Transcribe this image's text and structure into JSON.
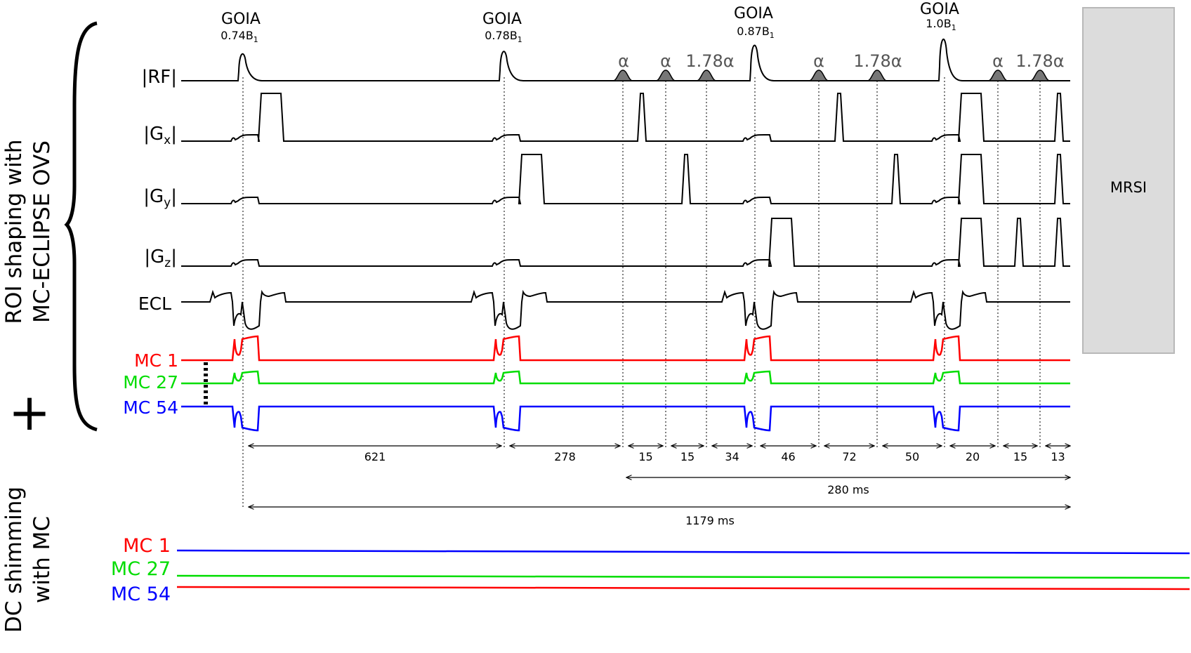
{
  "side_labels": {
    "top_line1": "ROI shaping with",
    "top_line2": "MC-ECLIPSE OVS",
    "plus": "+",
    "bottom_line1": "DC shimming",
    "bottom_line2": "with MC"
  },
  "goia": [
    {
      "title": "GOIA",
      "sub": "0.74B",
      "subscript": "1"
    },
    {
      "title": "GOIA",
      "sub": "0.78B",
      "subscript": "1"
    },
    {
      "title": "GOIA",
      "sub": "0.87B",
      "subscript": "1"
    },
    {
      "title": "GOIA",
      "sub": "1.0B",
      "subscript": "1"
    }
  ],
  "flip_labels": [
    "α",
    "α",
    "1.78α",
    "α",
    "1.78α",
    "α",
    "1.78α"
  ],
  "rows": {
    "rf": {
      "pre": "|RF",
      "post": "|"
    },
    "gx": {
      "pre": "|G",
      "sub": "x",
      "post": "|"
    },
    "gy": {
      "pre": "|G",
      "sub": "y",
      "post": "|"
    },
    "gz": {
      "pre": "|G",
      "sub": "z",
      "post": "|"
    },
    "ecl": "ECL"
  },
  "mc_labels": [
    {
      "text": "MC 1",
      "color": "#ff0000"
    },
    {
      "text": "MC 27",
      "color": "#00dd00"
    },
    {
      "text": "MC 54",
      "color": "#0000ff"
    }
  ],
  "mrsi": "MRSI",
  "intervals": [
    "621",
    "278",
    "15",
    "15",
    "34",
    "46",
    "72",
    "50",
    "20",
    "15",
    "13"
  ],
  "total_280": "280 ms",
  "total_1179": "1179 ms",
  "dc_labels": [
    {
      "text": "MC 1",
      "color": "#ff0000"
    },
    {
      "text": "MC 27",
      "color": "#00dd00"
    },
    {
      "text": "MC 54",
      "color": "#0000ff"
    }
  ],
  "dc_line_colors": [
    "#0000ff",
    "#00dd00",
    "#ff0000"
  ]
}
